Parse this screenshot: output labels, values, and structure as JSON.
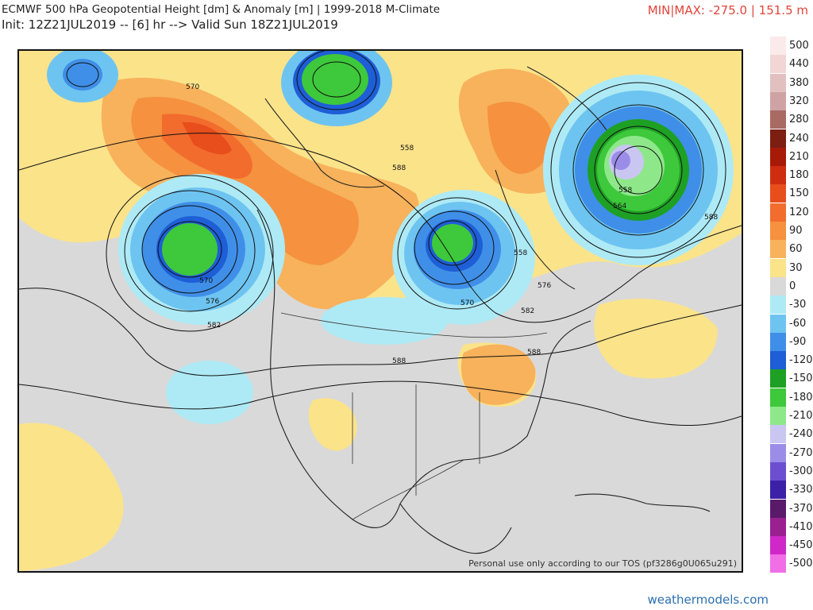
{
  "header": {
    "title": "ECMWF 500 hPa Geopotential Height [dm] & Anomaly [m] | 1999-2018 M-Climate",
    "subtitle": "Init: 12Z21JUL2019 -- [6] hr --> Valid Sun 18Z21JUL2019",
    "minmax": "MIN|MAX: -275.0 | 151.5 m"
  },
  "map": {
    "contour_labels": [
      "570",
      "588",
      "558",
      "558",
      "564",
      "588",
      "570",
      "576",
      "582",
      "570",
      "558",
      "576",
      "582",
      "588",
      "588"
    ],
    "watermark": "Personal use only according to our TOS (pf3286g0U065u291)"
  },
  "legend": {
    "items": [
      {
        "label": "500",
        "color": "#fbeaea"
      },
      {
        "label": "440",
        "color": "#f2d6d6"
      },
      {
        "label": "380",
        "color": "#e2c0c0"
      },
      {
        "label": "320",
        "color": "#cfa3a3"
      },
      {
        "label": "280",
        "color": "#a86a63"
      },
      {
        "label": "240",
        "color": "#7c1e12"
      },
      {
        "label": "210",
        "color": "#a81a08"
      },
      {
        "label": "180",
        "color": "#cf2d10"
      },
      {
        "label": "150",
        "color": "#e84d1c"
      },
      {
        "label": "120",
        "color": "#f26c2e"
      },
      {
        "label": "90",
        "color": "#f5913f"
      },
      {
        "label": "60",
        "color": "#f7b25b"
      },
      {
        "label": "30",
        "color": "#fbe38a"
      },
      {
        "label": "0",
        "color": "#d9d9d9"
      },
      {
        "label": "-30",
        "color": "#aeeaf5"
      },
      {
        "label": "-60",
        "color": "#6ec4f0"
      },
      {
        "label": "-90",
        "color": "#3f8fe8"
      },
      {
        "label": "-120",
        "color": "#1e5ed6"
      },
      {
        "label": "-150",
        "color": "#1ea024"
      },
      {
        "label": "-180",
        "color": "#3ec83b"
      },
      {
        "label": "-210",
        "color": "#8ee88a"
      },
      {
        "label": "-240",
        "color": "#c9c6f2"
      },
      {
        "label": "-270",
        "color": "#9b8ce8"
      },
      {
        "label": "-300",
        "color": "#6c4fd0"
      },
      {
        "label": "-330",
        "color": "#3c21a8"
      },
      {
        "label": "-370",
        "color": "#5a1a6a"
      },
      {
        "label": "-410",
        "color": "#9a2090"
      },
      {
        "label": "-450",
        "color": "#d028c8"
      },
      {
        "label": "-500",
        "color": "#f06ee6"
      }
    ]
  },
  "credit": "weathermodels.com"
}
